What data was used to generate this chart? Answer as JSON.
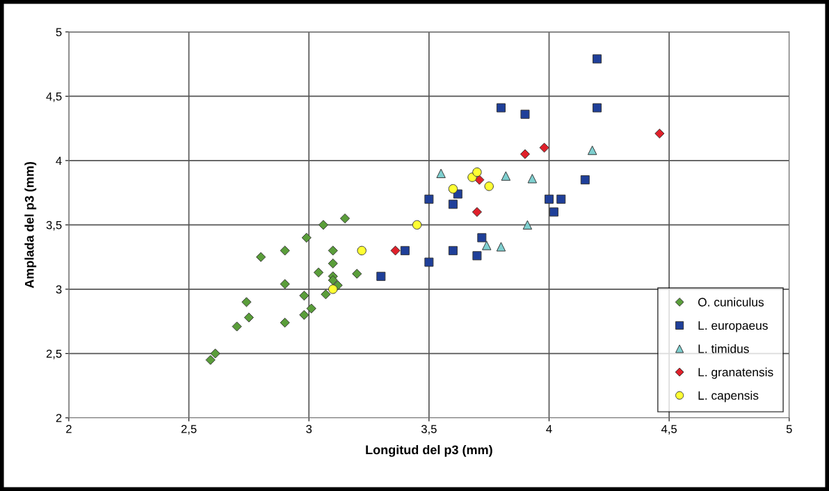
{
  "chart_data": {
    "type": "scatter",
    "xlabel": "Longitud del p3 (mm)",
    "ylabel": "Amplada del p3 (mm)",
    "xlim": [
      2,
      5
    ],
    "ylim": [
      2,
      5
    ],
    "xticks": [
      2,
      {
        "value": 2.5,
        "label": "2,5"
      },
      3,
      {
        "value": 3.5,
        "label": "3,5"
      },
      4,
      {
        "value": 4.5,
        "label": "4,5"
      },
      5
    ],
    "yticks": [
      2,
      {
        "value": 2.5,
        "label": "2,5"
      },
      3,
      {
        "value": 3.5,
        "label": "3,5"
      },
      4,
      {
        "value": 4.5,
        "label": "4,5"
      },
      5
    ],
    "grid": true,
    "legend": "lower right",
    "series": [
      {
        "name": "O. cuniculus",
        "color": "#5a9e3a",
        "marker": "diamond",
        "x": [
          3.15,
          3.06,
          2.99,
          2.9,
          2.8,
          3.1,
          3.1,
          3.04,
          3.1,
          3.1,
          3.12,
          3.2,
          2.9,
          2.98,
          3.07,
          3.01,
          2.98,
          2.74,
          2.75,
          2.7,
          2.9,
          2.61,
          2.59
        ],
        "values": [
          3.55,
          3.5,
          3.4,
          3.3,
          3.25,
          3.3,
          3.2,
          3.13,
          3.1,
          3.07,
          3.03,
          3.12,
          3.04,
          2.95,
          2.96,
          2.85,
          2.8,
          2.9,
          2.78,
          2.71,
          2.74,
          2.5,
          2.45
        ]
      },
      {
        "name": "L. europaeus",
        "color": "#1f3f99",
        "marker": "square",
        "x": [
          3.3,
          3.4,
          3.5,
          3.5,
          3.62,
          3.6,
          3.6,
          3.72,
          3.7,
          4.0,
          4.05,
          4.02,
          4.15,
          3.8,
          3.9,
          4.2,
          4.2
        ],
        "values": [
          3.1,
          3.3,
          3.21,
          3.7,
          3.74,
          3.66,
          3.3,
          3.4,
          3.26,
          3.7,
          3.7,
          3.6,
          3.85,
          4.41,
          4.36,
          4.41,
          4.79
        ]
      },
      {
        "name": "L. timidus",
        "color": "#7ecfcf",
        "marker": "triangle",
        "x": [
          3.55,
          3.82,
          3.93,
          3.91,
          3.74,
          3.8,
          4.18
        ],
        "values": [
          3.9,
          3.88,
          3.86,
          3.5,
          3.34,
          3.33,
          4.08
        ]
      },
      {
        "name": "L. granatensis",
        "color": "#e0202a",
        "marker": "diamond",
        "x": [
          3.36,
          3.7,
          3.71,
          3.9,
          3.98,
          4.46
        ],
        "values": [
          3.3,
          3.6,
          3.85,
          4.05,
          4.1,
          4.21
        ]
      },
      {
        "name": "L. capensis",
        "color": "#ffff33",
        "marker": "circle",
        "x": [
          3.22,
          3.1,
          3.45,
          3.6,
          3.68,
          3.7,
          3.75
        ],
        "values": [
          3.3,
          3.0,
          3.5,
          3.78,
          3.87,
          3.91,
          3.8
        ]
      }
    ]
  }
}
